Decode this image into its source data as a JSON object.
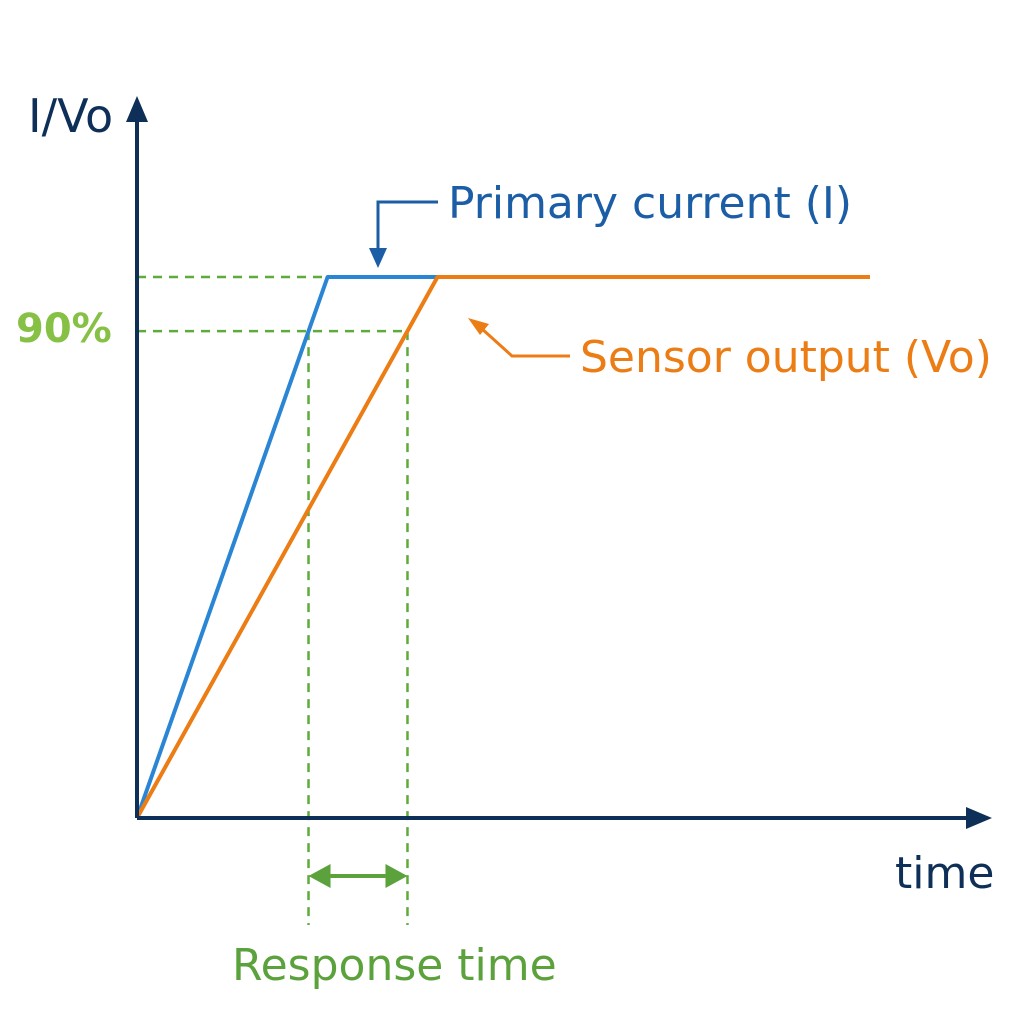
{
  "chart_data": {
    "type": "line",
    "ylabel": "I/Vo",
    "xlabel": "time",
    "threshold_label": "90%",
    "threshold_fraction": 0.9,
    "response_label": "Response time",
    "xlim": [
      0,
      1
    ],
    "ylim": [
      0,
      1.12
    ],
    "series": [
      {
        "name": "Primary current (I)",
        "x": [
          0,
          0.26,
          0.5,
          1.0
        ],
        "y": [
          0,
          1,
          1,
          1
        ]
      },
      {
        "name": "Sensor output (Vo)",
        "x": [
          0,
          0.41,
          1.0
        ],
        "y": [
          0,
          1,
          1
        ]
      }
    ]
  },
  "colors": {
    "axis": "#0e2f57",
    "primary": "#2a86d4",
    "primary_text": "#1b5ea6",
    "sensor": "#ec7c14",
    "green_dash": "#5faa3c",
    "green_text": "#5ba23d",
    "green_pct": "#86c044"
  }
}
